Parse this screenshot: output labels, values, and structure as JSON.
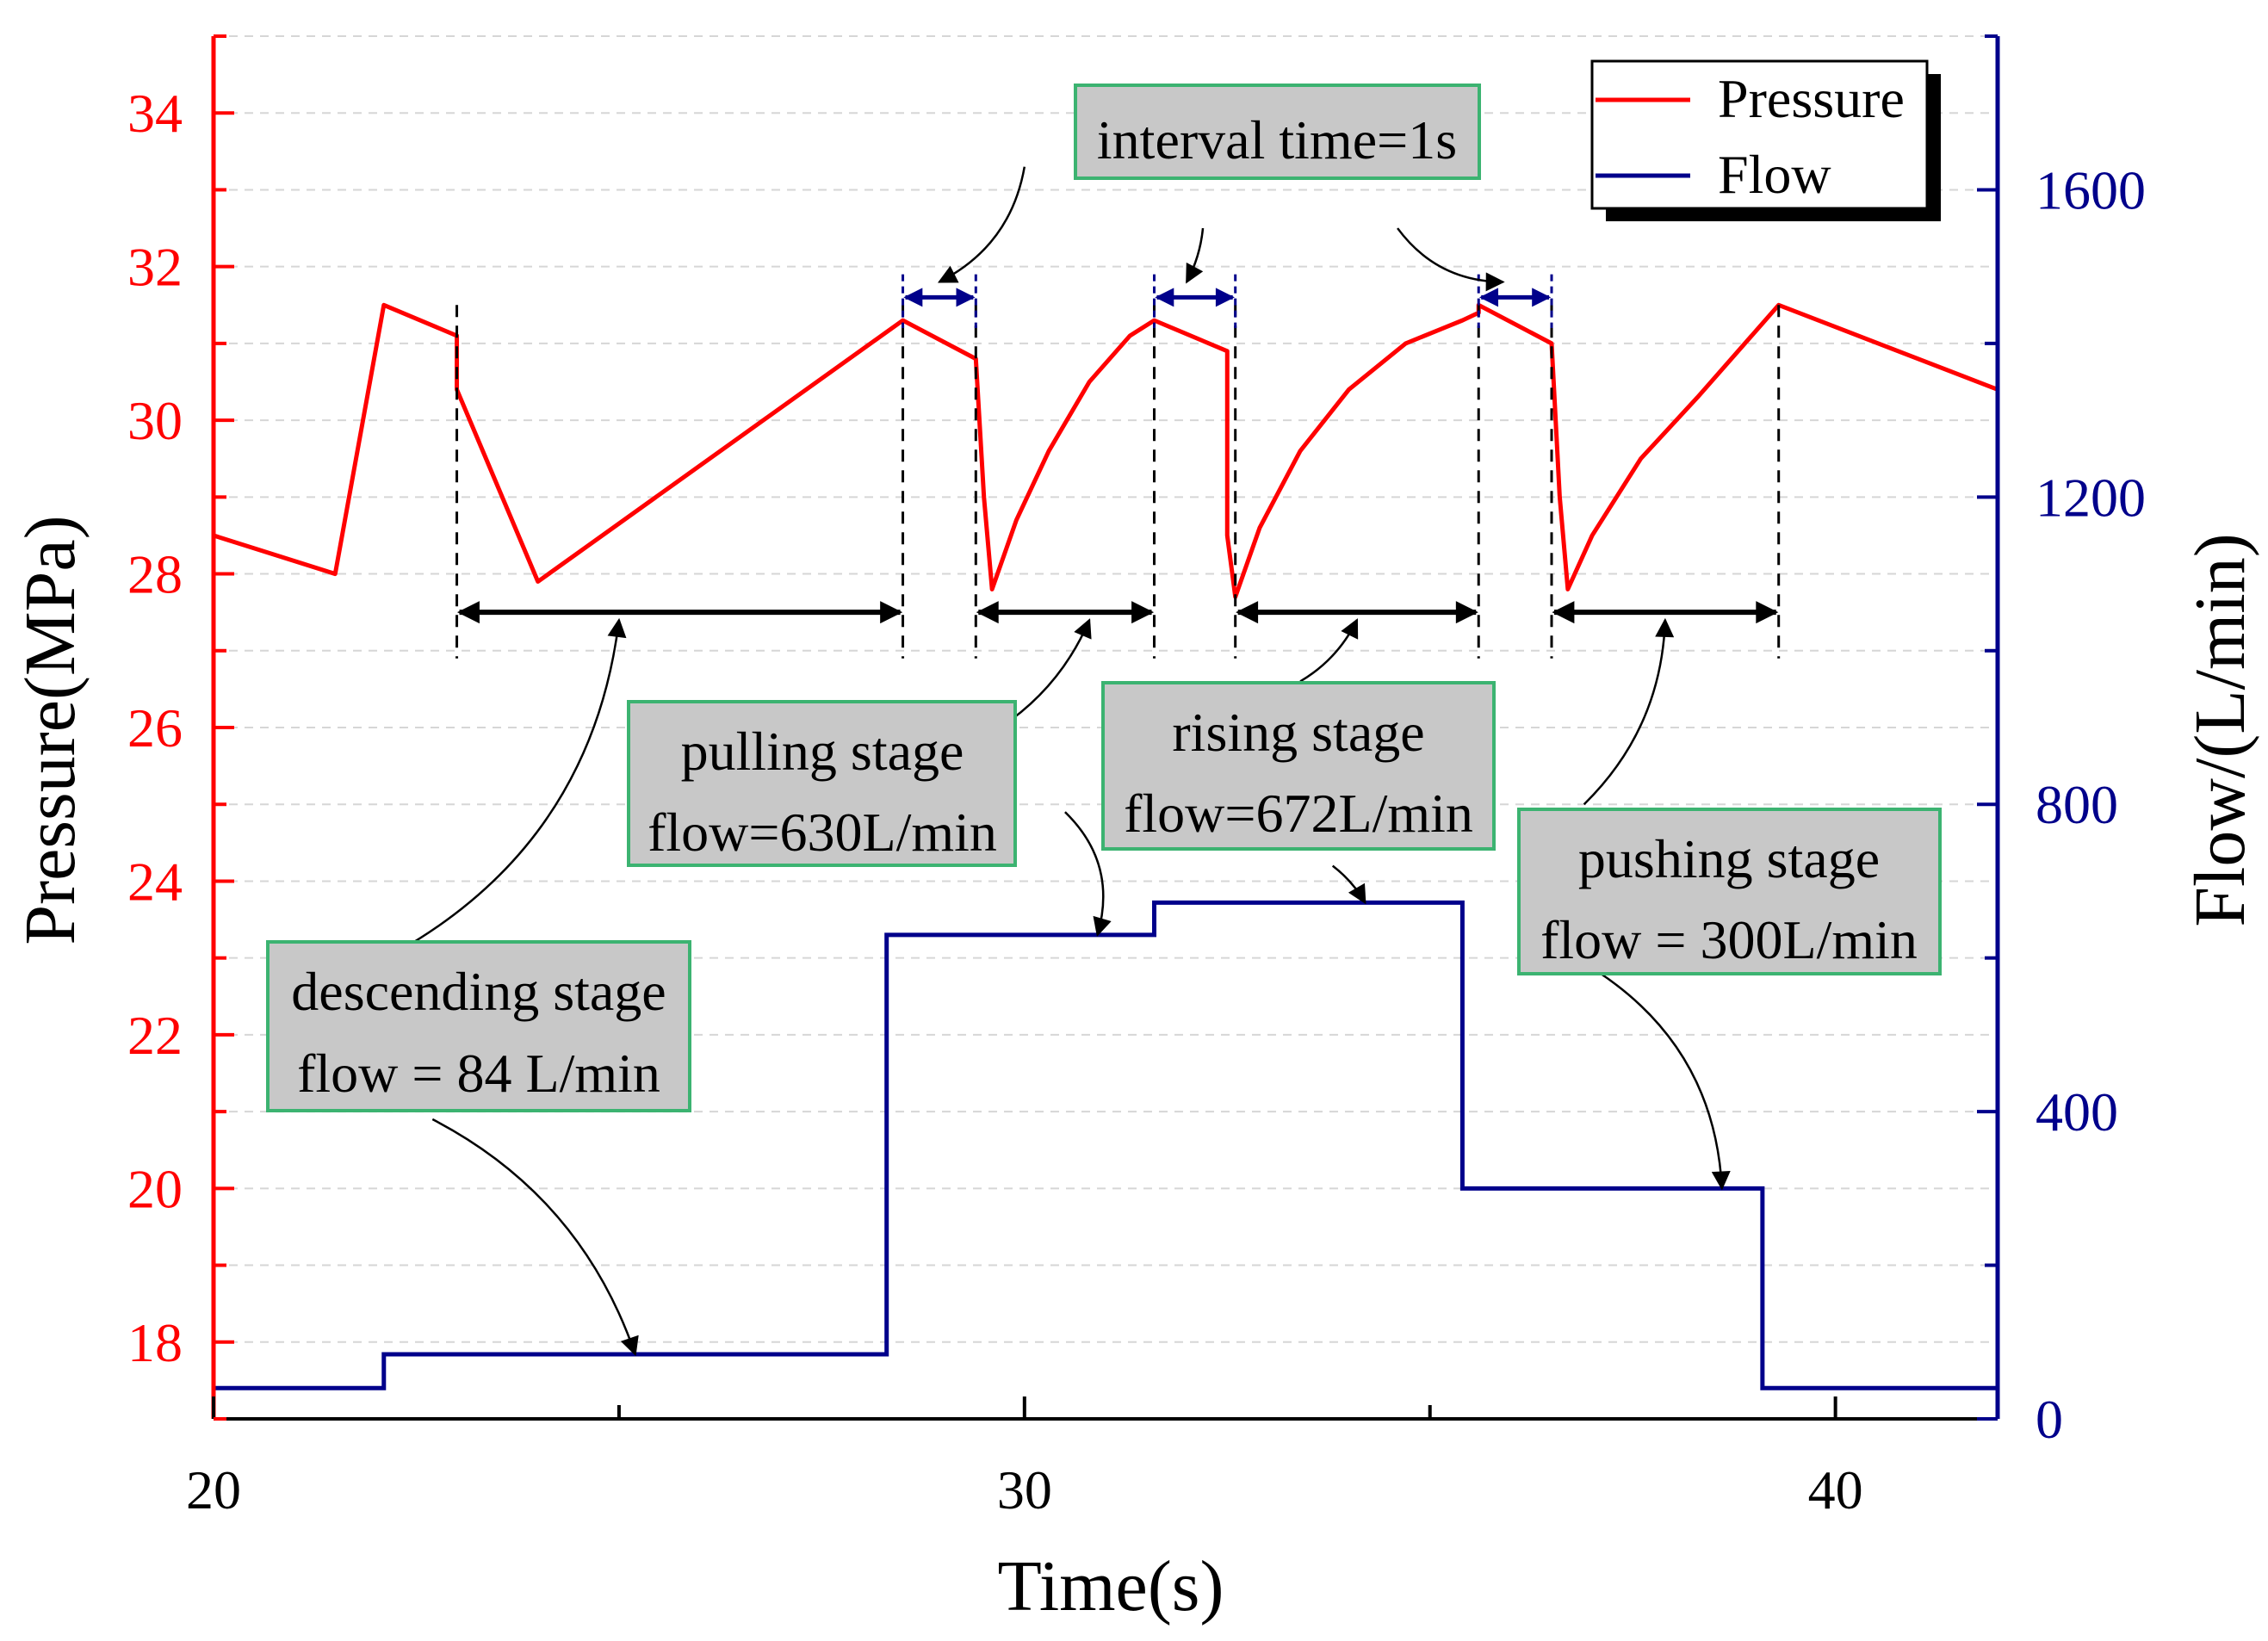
{
  "chart_data": {
    "type": "line",
    "title": "",
    "xlabel": "Time(s)",
    "ylabel": "Pressure(MPa)",
    "y2label": "Flow/(L/min)",
    "xlim": [
      20,
      42
    ],
    "ylim": [
      17,
      35
    ],
    "y2lim": [
      0,
      1800
    ],
    "x_ticks": [
      20,
      30,
      40
    ],
    "x_tick_labels": [
      "20",
      "30",
      "40"
    ],
    "y_ticks": [
      18,
      20,
      22,
      24,
      26,
      28,
      30,
      32,
      34
    ],
    "y_tick_labels": [
      "18",
      "20",
      "22",
      "24",
      "26",
      "28",
      "30",
      "32",
      "34"
    ],
    "y2_ticks": [
      0,
      400,
      800,
      1200,
      1600
    ],
    "y2_tick_labels": [
      "0",
      "400",
      "800",
      "1200",
      "1600"
    ],
    "grid": true,
    "legend_position": "top-right",
    "series": [
      {
        "name": "Pressure",
        "axis": "left",
        "color": "#ff0000",
        "x": [
          20,
          21.5,
          22.1,
          23.0,
          23.0,
          23.0,
          24.0,
          28.5,
          29.4,
          29.5,
          29.6,
          29.9,
          30.3,
          30.8,
          31.3,
          31.6,
          32.5,
          32.5,
          32.6,
          32.9,
          33.4,
          34.0,
          34.7,
          35.4,
          35.6,
          35.6,
          36.5,
          36.6,
          36.7,
          37.0,
          37.6,
          38.3,
          39.3,
          42.0
        ],
        "y": [
          28.5,
          28.0,
          31.5,
          31.1,
          30.6,
          30.4,
          27.9,
          31.3,
          30.8,
          29.0,
          27.8,
          28.7,
          29.6,
          30.5,
          31.1,
          31.3,
          30.9,
          28.5,
          27.7,
          28.6,
          29.6,
          30.4,
          31.0,
          31.3,
          31.4,
          31.5,
          31.0,
          29.0,
          27.8,
          28.5,
          29.5,
          30.3,
          31.5,
          30.4
        ]
      },
      {
        "name": "Flow",
        "axis": "right",
        "color": "#00008b",
        "x": [
          20,
          22.1,
          22.1,
          28.3,
          28.3,
          31.6,
          31.6,
          35.4,
          35.4,
          39.1,
          39.1,
          42.0
        ],
        "y": [
          40,
          40,
          84,
          84,
          630,
          630,
          672,
          672,
          300,
          300,
          40,
          40
        ]
      }
    ],
    "guide_lines_x": [
      23.0,
      28.5,
      29.4,
      31.6,
      32.6,
      35.6,
      36.5,
      39.3
    ],
    "interval_markers": [
      {
        "x1": 28.5,
        "x2": 29.4,
        "y": 31.6
      },
      {
        "x1": 31.6,
        "x2": 32.6,
        "y": 31.6
      },
      {
        "x1": 35.6,
        "x2": 36.5,
        "y": 31.6
      }
    ],
    "stage_spans": [
      {
        "x1": 23.0,
        "x2": 28.5,
        "y": 27.5
      },
      {
        "x1": 29.4,
        "x2": 31.6,
        "y": 27.5
      },
      {
        "x1": 32.6,
        "x2": 35.6,
        "y": 27.5
      },
      {
        "x1": 36.5,
        "x2": 39.3,
        "y": 27.5
      }
    ],
    "annotations": [
      {
        "id": "interval",
        "lines": [
          "interval time=1s"
        ],
        "arrows": [
          {
            "from": [
              30.0,
              33.3
            ],
            "to": [
              28.95,
              31.8
            ],
            "curve": -0.25
          },
          {
            "from": [
              32.2,
              32.5
            ],
            "to": [
              32.0,
              31.8
            ],
            "curve": -0.1
          },
          {
            "from": [
              34.6,
              32.5
            ],
            "to": [
              35.9,
              31.8
            ],
            "curve": 0.25
          }
        ]
      },
      {
        "id": "pulling",
        "lines": [
          "pulling stage",
          "flow=630L/min"
        ],
        "arrows": [
          {
            "from": [
              29.7,
              26.0
            ],
            "to": [
              30.8,
              27.4
            ],
            "curve": 0.15
          },
          {
            "from": [
              30.5,
              24.9
            ],
            "to": [
              30.9,
              630
            ],
            "to_axis": "right",
            "curve": -0.3
          }
        ]
      },
      {
        "id": "rising",
        "lines": [
          "rising stage",
          "flow=672L/min"
        ],
        "arrows": [
          {
            "from": [
              33.4,
              26.6
            ],
            "to": [
              34.1,
              27.4
            ],
            "curve": 0.15
          },
          {
            "from": [
              33.8,
              24.2
            ],
            "to": [
              34.2,
              672
            ],
            "to_axis": "right",
            "curve": -0.1
          }
        ]
      },
      {
        "id": "pushing",
        "lines": [
          "pushing stage",
          "flow = 300L/min"
        ],
        "arrows": [
          {
            "from": [
              36.9,
              25.0
            ],
            "to": [
              37.9,
              27.4
            ],
            "curve": 0.2
          },
          {
            "from": [
              37.1,
              22.8
            ],
            "to": [
              38.6,
              300
            ],
            "to_axis": "right",
            "curve": -0.25
          }
        ]
      },
      {
        "id": "descending",
        "lines": [
          "descending stage",
          "flow = 84 L/min"
        ],
        "arrows": [
          {
            "from": [
              22.3,
              23.1
            ],
            "to": [
              25.0,
              27.4
            ],
            "curve": 0.25
          },
          {
            "from": [
              22.7,
              20.9
            ],
            "to": [
              25.2,
              84
            ],
            "to_axis": "right",
            "curve": -0.2
          }
        ]
      }
    ]
  }
}
